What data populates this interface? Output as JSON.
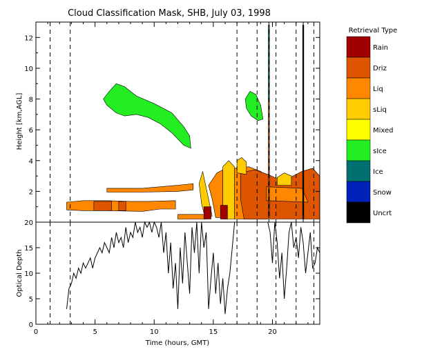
{
  "title": "Cloud Classification Mask, SHB, July 03, 1998",
  "legend": {
    "title": "Retrieval Type",
    "items": [
      {
        "label": "Rain",
        "color": "#a00000"
      },
      {
        "label": "Driz",
        "color": "#dd5500"
      },
      {
        "label": "Liq",
        "color": "#ff8800"
      },
      {
        "label": "sLiq",
        "color": "#ffcc00"
      },
      {
        "label": "Mixed",
        "color": "#ffff00"
      },
      {
        "label": "sIce",
        "color": "#22ee22"
      },
      {
        "label": "Ice",
        "color": "#007070"
      },
      {
        "label": "Snow",
        "color": "#0022bb"
      },
      {
        "label": "Uncrt",
        "color": "#000000"
      }
    ]
  },
  "chart_data": [
    {
      "type": "heatmap",
      "name": "classification-mask",
      "xlabel": "",
      "ylabel": "Height [km,AGL]",
      "xlim": [
        0,
        24
      ],
      "ylim": [
        0,
        13
      ],
      "yticks": [
        2,
        4,
        6,
        8,
        10,
        12
      ],
      "vlines": [
        1.2,
        2.9,
        17.0,
        18.7,
        19.7,
        20.3,
        22.0,
        22.6,
        23.5
      ],
      "regions": [
        {
          "class": "sIce",
          "points": [
            [
              5.7,
              8.0
            ],
            [
              6.2,
              8.5
            ],
            [
              6.8,
              9.0
            ],
            [
              7.5,
              8.8
            ],
            [
              8.5,
              8.2
            ],
            [
              10.0,
              7.7
            ],
            [
              11.5,
              7.1
            ],
            [
              12.5,
              6.2
            ],
            [
              13.0,
              5.6
            ],
            [
              13.1,
              4.8
            ],
            [
              12.5,
              5.0
            ],
            [
              11.5,
              5.8
            ],
            [
              10.5,
              6.4
            ],
            [
              9.5,
              6.8
            ],
            [
              8.5,
              7.0
            ],
            [
              7.5,
              6.9
            ],
            [
              6.8,
              7.1
            ],
            [
              6.0,
              7.6
            ]
          ]
        },
        {
          "class": "sIce",
          "points": [
            [
              17.7,
              8.0
            ],
            [
              18.1,
              8.5
            ],
            [
              18.6,
              8.3
            ],
            [
              19.0,
              7.6
            ],
            [
              19.2,
              6.7
            ],
            [
              18.8,
              6.6
            ],
            [
              18.2,
              6.9
            ],
            [
              17.8,
              7.4
            ]
          ]
        },
        {
          "class": "Liq",
          "points": [
            [
              2.6,
              1.3
            ],
            [
              4.0,
              1.4
            ],
            [
              6.0,
              1.4
            ],
            [
              8.0,
              1.35
            ],
            [
              9.5,
              1.35
            ],
            [
              11.8,
              1.4
            ],
            [
              11.8,
              0.85
            ],
            [
              10.5,
              0.85
            ],
            [
              9.0,
              0.7
            ],
            [
              6.0,
              0.75
            ],
            [
              4.0,
              0.75
            ],
            [
              2.6,
              0.8
            ]
          ]
        },
        {
          "class": "Driz",
          "points": [
            [
              4.9,
              1.35
            ],
            [
              6.4,
              1.35
            ],
            [
              6.4,
              0.75
            ],
            [
              4.9,
              0.75
            ]
          ]
        },
        {
          "class": "Driz",
          "points": [
            [
              7.0,
              1.35
            ],
            [
              7.6,
              1.35
            ],
            [
              7.6,
              0.75
            ],
            [
              7.0,
              0.75
            ]
          ]
        },
        {
          "class": "Liq",
          "points": [
            [
              6.0,
              2.2
            ],
            [
              9.0,
              2.2
            ],
            [
              12.0,
              2.4
            ],
            [
              13.3,
              2.5
            ],
            [
              13.3,
              2.1
            ],
            [
              12.0,
              2.0
            ],
            [
              9.0,
              1.95
            ],
            [
              6.0,
              1.95
            ]
          ]
        },
        {
          "class": "sLiq",
          "points": [
            [
              13.8,
              2.5
            ],
            [
              14.1,
              3.3
            ],
            [
              14.6,
              1.5
            ],
            [
              14.9,
              0.4
            ],
            [
              14.3,
              0.3
            ],
            [
              14.0,
              1.2
            ]
          ]
        },
        {
          "class": "Liq",
          "points": [
            [
              14.6,
              2.4
            ],
            [
              15.3,
              3.2
            ],
            [
              15.8,
              3.4
            ],
            [
              15.8,
              0.3
            ],
            [
              15.2,
              0.3
            ],
            [
              14.9,
              1.5
            ]
          ]
        },
        {
          "class": "sLiq",
          "points": [
            [
              15.8,
              3.6
            ],
            [
              16.3,
              4.0
            ],
            [
              16.8,
              3.6
            ],
            [
              16.8,
              0.2
            ],
            [
              15.8,
              0.2
            ]
          ]
        },
        {
          "class": "Liq",
          "points": [
            [
              16.8,
              3.5
            ],
            [
              18.0,
              3.6
            ],
            [
              19.0,
              3.3
            ],
            [
              19.5,
              3.0
            ],
            [
              19.5,
              0.2
            ],
            [
              16.8,
              0.2
            ]
          ]
        },
        {
          "class": "Driz",
          "points": [
            [
              17.3,
              3.2
            ],
            [
              18.5,
              3.4
            ],
            [
              19.6,
              3.1
            ],
            [
              20.5,
              2.8
            ],
            [
              21.5,
              2.9
            ],
            [
              22.5,
              3.3
            ],
            [
              23.4,
              3.5
            ],
            [
              24.0,
              3.0
            ],
            [
              24.0,
              0.2
            ],
            [
              21.5,
              0.2
            ],
            [
              19.0,
              0.2
            ],
            [
              17.6,
              0.2
            ],
            [
              17.3,
              1.5
            ]
          ]
        },
        {
          "class": "sLiq",
          "points": [
            [
              17.0,
              4.0
            ],
            [
              17.4,
              4.2
            ],
            [
              17.8,
              3.9
            ],
            [
              17.8,
              3.1
            ],
            [
              17.0,
              3.2
            ]
          ]
        },
        {
          "class": "Liq",
          "points": [
            [
              19.5,
              2.3
            ],
            [
              22.5,
              2.2
            ],
            [
              23.0,
              1.3
            ],
            [
              19.5,
              1.4
            ]
          ]
        },
        {
          "class": "sLiq",
          "points": [
            [
              20.4,
              2.9
            ],
            [
              21.0,
              3.2
            ],
            [
              21.6,
              3.0
            ],
            [
              21.6,
              2.4
            ],
            [
              20.4,
              2.4
            ]
          ]
        },
        {
          "class": "Liq",
          "points": [
            [
              12.0,
              0.5
            ],
            [
              14.4,
              0.5
            ],
            [
              14.4,
              0.2
            ],
            [
              12.0,
              0.2
            ]
          ]
        },
        {
          "class": "Rain",
          "points": [
            [
              14.2,
              1.0
            ],
            [
              14.8,
              1.0
            ],
            [
              14.8,
              0.2
            ],
            [
              14.2,
              0.2
            ]
          ]
        },
        {
          "class": "Rain",
          "points": [
            [
              15.6,
              1.1
            ],
            [
              16.2,
              1.1
            ],
            [
              16.2,
              0.2
            ],
            [
              15.6,
              0.2
            ]
          ]
        },
        {
          "class": "Uncrt",
          "points": [
            [
              22.55,
              12.8
            ],
            [
              22.65,
              12.8
            ],
            [
              22.65,
              0.2
            ],
            [
              22.55,
              0.2
            ]
          ]
        },
        {
          "class": "Ice",
          "points": [
            [
              19.65,
              12.8
            ],
            [
              19.75,
              12.8
            ],
            [
              19.75,
              8.0
            ],
            [
              19.65,
              8.0
            ]
          ]
        },
        {
          "class": "Driz",
          "points": [
            [
              19.65,
              8.0
            ],
            [
              19.75,
              8.0
            ],
            [
              19.75,
              0.3
            ],
            [
              19.65,
              0.3
            ]
          ]
        }
      ]
    },
    {
      "type": "line",
      "name": "optical-depth",
      "xlabel": "Time (hours, GMT)",
      "ylabel": "Optical Depth",
      "xlim": [
        0,
        24
      ],
      "ylim": [
        0,
        20
      ],
      "xticks": [
        0,
        5,
        10,
        15,
        20
      ],
      "yticks": [
        0,
        5,
        10,
        15,
        20
      ],
      "vlines": [
        1.2,
        2.9,
        17.0,
        18.7,
        20.3,
        22.0,
        23.5
      ],
      "x": [
        2.6,
        2.8,
        3.0,
        3.2,
        3.4,
        3.6,
        3.8,
        4.0,
        4.2,
        4.4,
        4.6,
        4.8,
        5.0,
        5.2,
        5.4,
        5.6,
        5.8,
        6.0,
        6.2,
        6.4,
        6.6,
        6.8,
        7.0,
        7.2,
        7.4,
        7.6,
        7.8,
        8.0,
        8.2,
        8.4,
        8.6,
        8.8,
        9.0,
        9.2,
        9.4,
        9.6,
        9.8,
        10.0,
        10.2,
        10.4,
        10.6,
        10.8,
        11.0,
        11.2,
        11.4,
        11.6,
        11.8,
        12.0,
        12.2,
        12.4,
        12.6,
        12.8,
        13.0,
        13.2,
        13.4,
        13.6,
        13.8,
        14.0,
        14.2,
        14.4,
        14.6,
        14.8,
        15.0,
        15.2,
        15.4,
        15.6,
        15.8,
        16.0,
        16.2,
        16.4,
        16.6,
        16.8
      ],
      "values": [
        3,
        7,
        8,
        10,
        9,
        11,
        10,
        12,
        11,
        12,
        13,
        11,
        13,
        14,
        15,
        14,
        16,
        15,
        14,
        17,
        15,
        18,
        16,
        17,
        15,
        19,
        16,
        18,
        17,
        20,
        18,
        19,
        17,
        20,
        19,
        20,
        18,
        20,
        19,
        17,
        20,
        14,
        18,
        10,
        16,
        7,
        12,
        3,
        15,
        8,
        18,
        12,
        6,
        19,
        14,
        20,
        10,
        20,
        15,
        18,
        3,
        9,
        14,
        6,
        12,
        4,
        9,
        2,
        7,
        10,
        15,
        20
      ],
      "x2": [
        19.6,
        19.8,
        20.0,
        20.2,
        20.4,
        20.6,
        20.8,
        21.0,
        21.2,
        21.4,
        21.6,
        21.8,
        22.0,
        22.2,
        22.4,
        22.6,
        22.8,
        23.0,
        23.2,
        23.4,
        23.6,
        23.8,
        24.0
      ],
      "values2": [
        20,
        18,
        12,
        20,
        16,
        9,
        14,
        5,
        11,
        18,
        20,
        15,
        17,
        13,
        19,
        16,
        10,
        14,
        18,
        11,
        12,
        15,
        14
      ]
    }
  ]
}
